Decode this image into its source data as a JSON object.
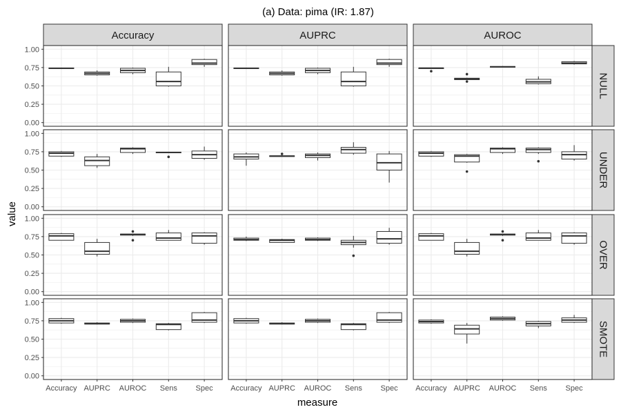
{
  "chart_data": {
    "type": "boxplot",
    "title": "(a) Data: pima (IR: 1.87)",
    "xlabel": "measure",
    "ylabel": "value",
    "ylim": [
      0,
      1
    ],
    "yticks": [
      "0.00",
      "0.25",
      "0.50",
      "0.75",
      "1.00"
    ],
    "ytick_values": [
      0,
      0.25,
      0.5,
      0.75,
      1.0
    ],
    "grid": true,
    "facet_cols": [
      "Accuracy",
      "AUPRC",
      "AUROC"
    ],
    "facet_rows": [
      "NULL",
      "UNDER",
      "OVER",
      "SMOTE"
    ],
    "categories": [
      "Accuracy",
      "AUPRC",
      "AUROC",
      "Sens",
      "Spec"
    ],
    "panels": [
      {
        "row": "NULL",
        "col": "Accuracy",
        "boxes": [
          {
            "min": 0.73,
            "q1": 0.735,
            "median": 0.74,
            "q3": 0.745,
            "max": 0.75,
            "outliers": []
          },
          {
            "min": 0.64,
            "q1": 0.65,
            "median": 0.67,
            "q3": 0.69,
            "max": 0.71,
            "outliers": []
          },
          {
            "min": 0.66,
            "q1": 0.68,
            "median": 0.71,
            "q3": 0.74,
            "max": 0.75,
            "outliers": []
          },
          {
            "min": 0.49,
            "q1": 0.5,
            "median": 0.56,
            "q3": 0.69,
            "max": 0.76,
            "outliers": []
          },
          {
            "min": 0.76,
            "q1": 0.79,
            "median": 0.81,
            "q3": 0.86,
            "max": 0.87,
            "outliers": []
          }
        ]
      },
      {
        "row": "NULL",
        "col": "AUPRC",
        "boxes": [
          {
            "min": 0.73,
            "q1": 0.735,
            "median": 0.74,
            "q3": 0.745,
            "max": 0.75,
            "outliers": []
          },
          {
            "min": 0.64,
            "q1": 0.65,
            "median": 0.67,
            "q3": 0.69,
            "max": 0.71,
            "outliers": []
          },
          {
            "min": 0.66,
            "q1": 0.68,
            "median": 0.71,
            "q3": 0.74,
            "max": 0.75,
            "outliers": []
          },
          {
            "min": 0.49,
            "q1": 0.5,
            "median": 0.56,
            "q3": 0.69,
            "max": 0.76,
            "outliers": []
          },
          {
            "min": 0.76,
            "q1": 0.79,
            "median": 0.81,
            "q3": 0.86,
            "max": 0.87,
            "outliers": []
          }
        ]
      },
      {
        "row": "NULL",
        "col": "AUROC",
        "boxes": [
          {
            "min": 0.735,
            "q1": 0.74,
            "median": 0.742,
            "q3": 0.745,
            "max": 0.75,
            "outliers": [
              0.7
            ]
          },
          {
            "min": 0.58,
            "q1": 0.585,
            "median": 0.595,
            "q3": 0.605,
            "max": 0.61,
            "outliers": [
              0.56,
              0.66
            ]
          },
          {
            "min": 0.75,
            "q1": 0.755,
            "median": 0.76,
            "q3": 0.765,
            "max": 0.77,
            "outliers": []
          },
          {
            "min": 0.52,
            "q1": 0.53,
            "median": 0.555,
            "q3": 0.59,
            "max": 0.63,
            "outliers": []
          },
          {
            "min": 0.79,
            "q1": 0.8,
            "median": 0.81,
            "q3": 0.83,
            "max": 0.84,
            "outliers": []
          }
        ]
      },
      {
        "row": "UNDER",
        "col": "Accuracy",
        "boxes": [
          {
            "min": 0.68,
            "q1": 0.69,
            "median": 0.73,
            "q3": 0.75,
            "max": 0.76,
            "outliers": []
          },
          {
            "min": 0.53,
            "q1": 0.56,
            "median": 0.63,
            "q3": 0.68,
            "max": 0.72,
            "outliers": []
          },
          {
            "min": 0.72,
            "q1": 0.74,
            "median": 0.79,
            "q3": 0.8,
            "max": 0.81,
            "outliers": []
          },
          {
            "min": 0.73,
            "q1": 0.735,
            "median": 0.74,
            "q3": 0.745,
            "max": 0.75,
            "outliers": [
              0.68
            ]
          },
          {
            "min": 0.64,
            "q1": 0.66,
            "median": 0.71,
            "q3": 0.76,
            "max": 0.82,
            "outliers": []
          }
        ]
      },
      {
        "row": "UNDER",
        "col": "AUPRC",
        "boxes": [
          {
            "min": 0.56,
            "q1": 0.65,
            "median": 0.68,
            "q3": 0.72,
            "max": 0.74,
            "outliers": []
          },
          {
            "min": 0.68,
            "q1": 0.685,
            "median": 0.69,
            "q3": 0.695,
            "max": 0.7,
            "outliers": [
              0.72
            ]
          },
          {
            "min": 0.63,
            "q1": 0.67,
            "median": 0.7,
            "q3": 0.72,
            "max": 0.74,
            "outliers": []
          },
          {
            "min": 0.71,
            "q1": 0.73,
            "median": 0.78,
            "q3": 0.81,
            "max": 0.88,
            "outliers": []
          },
          {
            "min": 0.33,
            "q1": 0.5,
            "median": 0.6,
            "q3": 0.72,
            "max": 0.76,
            "outliers": []
          }
        ]
      },
      {
        "row": "UNDER",
        "col": "AUROC",
        "boxes": [
          {
            "min": 0.68,
            "q1": 0.69,
            "median": 0.73,
            "q3": 0.75,
            "max": 0.76,
            "outliers": []
          },
          {
            "min": 0.6,
            "q1": 0.61,
            "median": 0.69,
            "q3": 0.71,
            "max": 0.72,
            "outliers": [
              0.48
            ]
          },
          {
            "min": 0.72,
            "q1": 0.74,
            "median": 0.79,
            "q3": 0.8,
            "max": 0.81,
            "outliers": []
          },
          {
            "min": 0.72,
            "q1": 0.74,
            "median": 0.78,
            "q3": 0.8,
            "max": 0.81,
            "outliers": [
              0.62
            ]
          },
          {
            "min": 0.63,
            "q1": 0.65,
            "median": 0.71,
            "q3": 0.75,
            "max": 0.84,
            "outliers": []
          }
        ]
      },
      {
        "row": "OVER",
        "col": "Accuracy",
        "boxes": [
          {
            "min": 0.7,
            "q1": 0.7,
            "median": 0.76,
            "q3": 0.79,
            "max": 0.8,
            "outliers": []
          },
          {
            "min": 0.48,
            "q1": 0.51,
            "median": 0.55,
            "q3": 0.67,
            "max": 0.72,
            "outliers": []
          },
          {
            "min": 0.76,
            "q1": 0.77,
            "median": 0.78,
            "q3": 0.785,
            "max": 0.79,
            "outliers": [
              0.7,
              0.82
            ]
          },
          {
            "min": 0.7,
            "q1": 0.7,
            "median": 0.73,
            "q3": 0.8,
            "max": 0.84,
            "outliers": []
          },
          {
            "min": 0.64,
            "q1": 0.66,
            "median": 0.76,
            "q3": 0.8,
            "max": 0.81,
            "outliers": []
          }
        ]
      },
      {
        "row": "OVER",
        "col": "AUPRC",
        "boxes": [
          {
            "min": 0.69,
            "q1": 0.7,
            "median": 0.71,
            "q3": 0.73,
            "max": 0.75,
            "outliers": []
          },
          {
            "min": 0.67,
            "q1": 0.67,
            "median": 0.7,
            "q3": 0.71,
            "max": 0.72,
            "outliers": []
          },
          {
            "min": 0.69,
            "q1": 0.7,
            "median": 0.71,
            "q3": 0.73,
            "max": 0.74,
            "outliers": []
          },
          {
            "min": 0.6,
            "q1": 0.64,
            "median": 0.67,
            "q3": 0.7,
            "max": 0.76,
            "outliers": [
              0.49
            ]
          },
          {
            "min": 0.64,
            "q1": 0.66,
            "median": 0.72,
            "q3": 0.82,
            "max": 0.87,
            "outliers": []
          }
        ]
      },
      {
        "row": "OVER",
        "col": "AUROC",
        "boxes": [
          {
            "min": 0.7,
            "q1": 0.7,
            "median": 0.76,
            "q3": 0.79,
            "max": 0.8,
            "outliers": []
          },
          {
            "min": 0.48,
            "q1": 0.51,
            "median": 0.55,
            "q3": 0.67,
            "max": 0.72,
            "outliers": []
          },
          {
            "min": 0.76,
            "q1": 0.77,
            "median": 0.78,
            "q3": 0.785,
            "max": 0.79,
            "outliers": [
              0.7,
              0.82
            ]
          },
          {
            "min": 0.7,
            "q1": 0.7,
            "median": 0.73,
            "q3": 0.8,
            "max": 0.84,
            "outliers": []
          },
          {
            "min": 0.64,
            "q1": 0.66,
            "median": 0.76,
            "q3": 0.8,
            "max": 0.81,
            "outliers": []
          }
        ]
      },
      {
        "row": "SMOTE",
        "col": "Accuracy",
        "boxes": [
          {
            "min": 0.71,
            "q1": 0.72,
            "median": 0.75,
            "q3": 0.78,
            "max": 0.79,
            "outliers": []
          },
          {
            "min": 0.7,
            "q1": 0.705,
            "median": 0.71,
            "q3": 0.72,
            "max": 0.73,
            "outliers": []
          },
          {
            "min": 0.72,
            "q1": 0.73,
            "median": 0.75,
            "q3": 0.77,
            "max": 0.78,
            "outliers": []
          },
          {
            "min": 0.62,
            "q1": 0.63,
            "median": 0.7,
            "q3": 0.71,
            "max": 0.72,
            "outliers": []
          },
          {
            "min": 0.72,
            "q1": 0.73,
            "median": 0.76,
            "q3": 0.86,
            "max": 0.87,
            "outliers": []
          }
        ]
      },
      {
        "row": "SMOTE",
        "col": "AUPRC",
        "boxes": [
          {
            "min": 0.71,
            "q1": 0.72,
            "median": 0.75,
            "q3": 0.78,
            "max": 0.79,
            "outliers": []
          },
          {
            "min": 0.7,
            "q1": 0.705,
            "median": 0.71,
            "q3": 0.72,
            "max": 0.73,
            "outliers": []
          },
          {
            "min": 0.72,
            "q1": 0.73,
            "median": 0.75,
            "q3": 0.77,
            "max": 0.78,
            "outliers": []
          },
          {
            "min": 0.62,
            "q1": 0.63,
            "median": 0.7,
            "q3": 0.71,
            "max": 0.72,
            "outliers": []
          },
          {
            "min": 0.72,
            "q1": 0.73,
            "median": 0.76,
            "q3": 0.86,
            "max": 0.87,
            "outliers": []
          }
        ]
      },
      {
        "row": "SMOTE",
        "col": "AUROC",
        "boxes": [
          {
            "min": 0.71,
            "q1": 0.72,
            "median": 0.74,
            "q3": 0.76,
            "max": 0.77,
            "outliers": []
          },
          {
            "min": 0.44,
            "q1": 0.57,
            "median": 0.64,
            "q3": 0.69,
            "max": 0.72,
            "outliers": []
          },
          {
            "min": 0.75,
            "q1": 0.76,
            "median": 0.78,
            "q3": 0.8,
            "max": 0.81,
            "outliers": []
          },
          {
            "min": 0.65,
            "q1": 0.68,
            "median": 0.71,
            "q3": 0.74,
            "max": 0.75,
            "outliers": []
          },
          {
            "min": 0.72,
            "q1": 0.73,
            "median": 0.76,
            "q3": 0.79,
            "max": 0.83,
            "outliers": []
          }
        ]
      }
    ]
  },
  "colors": {
    "strip_fill": "#d9d9d9",
    "panel_border": "#333333",
    "grid": "#ebebeb",
    "box_line": "#333333",
    "text": "#4d4d4d"
  }
}
